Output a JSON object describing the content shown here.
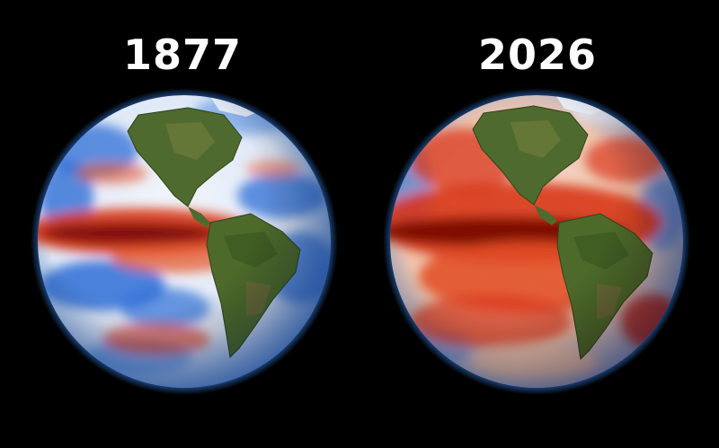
{
  "panels": [
    {
      "year": "1877",
      "anomaly": "cool"
    },
    {
      "year": "2026",
      "anomaly": "warm"
    }
  ],
  "colors": {
    "background": "#000000",
    "text": "#ffffff",
    "warm": "#d8361a",
    "hot": "#7a0a05",
    "cool": "#2f6fd6",
    "neutral": "#f2f4fa",
    "land": "#4f6a2e",
    "glow": "#3a8cff"
  }
}
